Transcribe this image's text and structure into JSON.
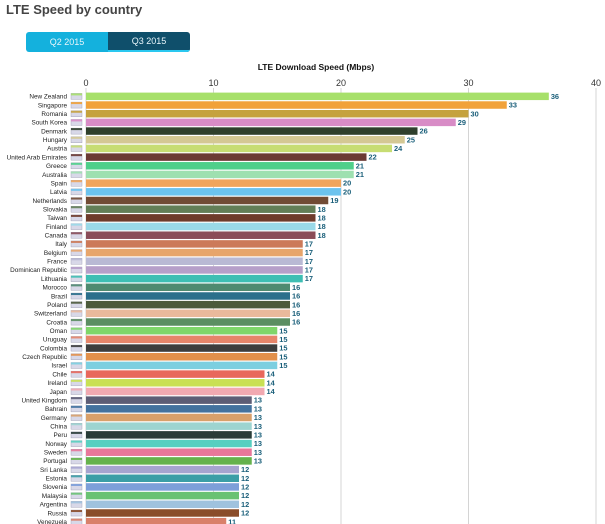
{
  "page": {
    "title": "LTE Speed by country"
  },
  "tabs": [
    {
      "label": "Q2 2015"
    },
    {
      "label": "Q3 2015"
    }
  ],
  "colors": {
    "tab_inactive": "#14b1dd",
    "tab_active": "#0f4f6b",
    "value_label": "#1a5f7a"
  },
  "chart_data": {
    "type": "bar",
    "orientation": "horizontal",
    "title": "LTE Download Speed (Mbps)",
    "xlim": [
      0,
      40
    ],
    "xticks": [
      0,
      10,
      20,
      30,
      40
    ],
    "grid": true,
    "categories": [
      "New Zealand",
      "Singapore",
      "Romania",
      "South Korea",
      "Denmark",
      "Hungary",
      "Austria",
      "United Arab Emirates",
      "Greece",
      "Australia",
      "Spain",
      "Latvia",
      "Netherlands",
      "Slovakia",
      "Taiwan",
      "Finland",
      "Canada",
      "Italy",
      "Belgium",
      "France",
      "Dominican Republic",
      "Lithuania",
      "Morocco",
      "Brazil",
      "Poland",
      "Switzerland",
      "Croatia",
      "Oman",
      "Uruguay",
      "Colombia",
      "Czech Republic",
      "Israel",
      "Chile",
      "Ireland",
      "Japan",
      "United Kingdom",
      "Bahrain",
      "Germany",
      "China",
      "Peru",
      "Norway",
      "Sweden",
      "Portugal",
      "Sri Lanka",
      "Estonia",
      "Slovenia",
      "Malaysia",
      "Argentina",
      "Russia",
      "Venezuela"
    ],
    "values": [
      36.3,
      33,
      30,
      29,
      26,
      25,
      24,
      22,
      21,
      21,
      20,
      20,
      19,
      18,
      18,
      18,
      18,
      17,
      17,
      17,
      17,
      17,
      16,
      16,
      16,
      16,
      16,
      15,
      15,
      15,
      15,
      15,
      14,
      14,
      14,
      13,
      13,
      13,
      13,
      13,
      13,
      13,
      13,
      12,
      12,
      12,
      12,
      12,
      12,
      11
    ],
    "labels": [
      "36",
      "33",
      "30",
      "29",
      "26",
      "25",
      "24",
      "22",
      "21",
      "21",
      "20",
      "20",
      "19",
      "18",
      "18",
      "18",
      "18",
      "17",
      "17",
      "17",
      "17",
      "17",
      "16",
      "16",
      "16",
      "16",
      "16",
      "15",
      "15",
      "15",
      "15",
      "15",
      "14",
      "14",
      "14",
      "13",
      "13",
      "13",
      "13",
      "13",
      "13",
      "13",
      "13",
      "12",
      "12",
      "12",
      "12",
      "12",
      "12",
      "11"
    ],
    "bar_colors": [
      "#a7e06a",
      "#f1a23a",
      "#c5a23e",
      "#d88cc6",
      "#2f3f2c",
      "#d4c894",
      "#c7dd73",
      "#6b3a34",
      "#4fcf8a",
      "#9ee0b0",
      "#f0a55c",
      "#6cc3ee",
      "#714b35",
      "#637e57",
      "#6e3b2b",
      "#9ad9e8",
      "#8a4c58",
      "#cc7a59",
      "#e7a56b",
      "#b9b9d4",
      "#b69fc9",
      "#3ebeb3",
      "#4f8a70",
      "#2b6f8b",
      "#4c5a3b",
      "#e9b99c",
      "#5b8e62",
      "#7fd66a",
      "#e6856a",
      "#3d3d3d",
      "#e2904b",
      "#7ccfe0",
      "#e8685c",
      "#c9e054",
      "#f1a9b1",
      "#5d5d75",
      "#43729e",
      "#d8a06a",
      "#9dd4d0",
      "#2a3d38",
      "#58cfc0",
      "#e8779a",
      "#65b24c",
      "#a6a4cf",
      "#3b9ea6",
      "#7d9fd9",
      "#69c272",
      "#9fc2de",
      "#8a4d2a",
      "#d9806a"
    ]
  }
}
